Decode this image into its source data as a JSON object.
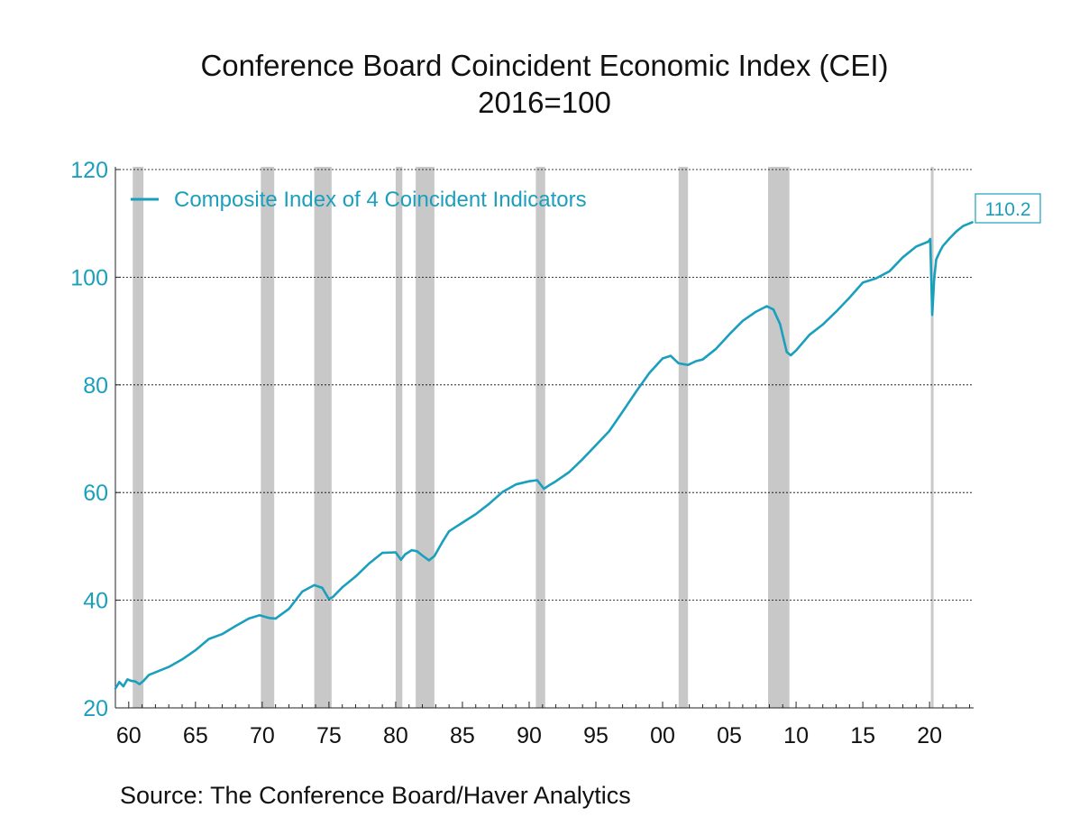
{
  "chart_data": {
    "type": "line",
    "title": "Conference Board Coincident Economic Index (CEI)",
    "subtitle": "2016=100",
    "source": "Source:  The Conference Board/Haver Analytics",
    "ylim": [
      20,
      120
    ],
    "yticks": [
      20,
      40,
      60,
      80,
      100,
      120
    ],
    "xlim": [
      1959.0,
      2023.3
    ],
    "xticks": [
      {
        "year": 1960,
        "label": "60"
      },
      {
        "year": 1965,
        "label": "65"
      },
      {
        "year": 1970,
        "label": "70"
      },
      {
        "year": 1975,
        "label": "75"
      },
      {
        "year": 1980,
        "label": "80"
      },
      {
        "year": 1985,
        "label": "85"
      },
      {
        "year": 1990,
        "label": "90"
      },
      {
        "year": 1995,
        "label": "95"
      },
      {
        "year": 2000,
        "label": "00"
      },
      {
        "year": 2005,
        "label": "05"
      },
      {
        "year": 2010,
        "label": "10"
      },
      {
        "year": 2015,
        "label": "15"
      },
      {
        "year": 2020,
        "label": "20"
      }
    ],
    "grid": true,
    "legend_position": "top-left",
    "recessions": [
      [
        1960.3,
        1961.1
      ],
      [
        1969.9,
        1970.9
      ],
      [
        1973.9,
        1975.2
      ],
      [
        1980.0,
        1980.5
      ],
      [
        1981.5,
        1982.9
      ],
      [
        1990.5,
        1991.2
      ],
      [
        2001.2,
        2001.9
      ],
      [
        2007.9,
        2009.5
      ],
      [
        2020.1,
        2020.3
      ]
    ],
    "series": [
      {
        "name": "Composite Index of 4 Coincident Indicators",
        "color": "#1a9fbd",
        "last_value_label": "110.2",
        "x": [
          1959.0,
          1959.3,
          1959.6,
          1959.9,
          1960.2,
          1960.5,
          1960.8,
          1961.1,
          1961.5,
          1962.0,
          1963.0,
          1964.0,
          1965.0,
          1966.0,
          1967.0,
          1968.0,
          1969.0,
          1969.8,
          1970.5,
          1971.0,
          1972.0,
          1973.0,
          1973.9,
          1974.5,
          1975.0,
          1975.3,
          1976.0,
          1977.0,
          1978.0,
          1979.0,
          1980.0,
          1980.4,
          1980.7,
          1981.2,
          1981.6,
          1982.0,
          1982.5,
          1982.9,
          1983.5,
          1984.0,
          1985.0,
          1986.0,
          1987.0,
          1988.0,
          1989.0,
          1990.0,
          1990.6,
          1991.1,
          1991.6,
          1992.0,
          1993.0,
          1994.0,
          1995.0,
          1996.0,
          1997.0,
          1998.0,
          1999.0,
          2000.0,
          2000.6,
          2001.2,
          2001.9,
          2002.5,
          2003.0,
          2004.0,
          2005.0,
          2006.0,
          2007.0,
          2007.8,
          2008.3,
          2008.8,
          2009.3,
          2009.6,
          2010.0,
          2011.0,
          2012.0,
          2013.0,
          2014.0,
          2015.0,
          2016.0,
          2017.0,
          2018.0,
          2019.0,
          2019.9,
          2020.05,
          2020.2,
          2020.35,
          2020.5,
          2020.8,
          2021.0,
          2021.5,
          2022.0,
          2022.5,
          2023.0,
          2023.2
        ],
        "values": [
          23.6,
          24.8,
          24.0,
          25.3,
          25.0,
          24.9,
          24.4,
          25.0,
          26.1,
          26.6,
          27.6,
          29.0,
          30.7,
          32.8,
          33.7,
          35.2,
          36.6,
          37.2,
          36.7,
          36.6,
          38.4,
          41.6,
          42.8,
          42.3,
          40.2,
          40.6,
          42.4,
          44.4,
          46.8,
          48.8,
          48.9,
          47.5,
          48.5,
          49.3,
          49.1,
          48.3,
          47.4,
          48.2,
          50.8,
          52.8,
          54.4,
          56.0,
          57.9,
          60.1,
          61.5,
          62.1,
          62.3,
          60.7,
          61.5,
          62.1,
          63.8,
          66.2,
          68.8,
          71.4,
          75.0,
          78.7,
          82.2,
          84.9,
          85.4,
          84.0,
          83.7,
          84.4,
          84.7,
          86.7,
          89.4,
          91.9,
          93.6,
          94.6,
          94.0,
          91.3,
          86.1,
          85.5,
          86.4,
          89.3,
          91.2,
          93.6,
          96.2,
          99.0,
          99.8,
          101.1,
          103.7,
          105.7,
          106.6,
          107.1,
          93.0,
          99.8,
          103.3,
          104.9,
          105.8,
          107.2,
          108.5,
          109.5,
          110.0,
          110.2
        ]
      }
    ]
  }
}
